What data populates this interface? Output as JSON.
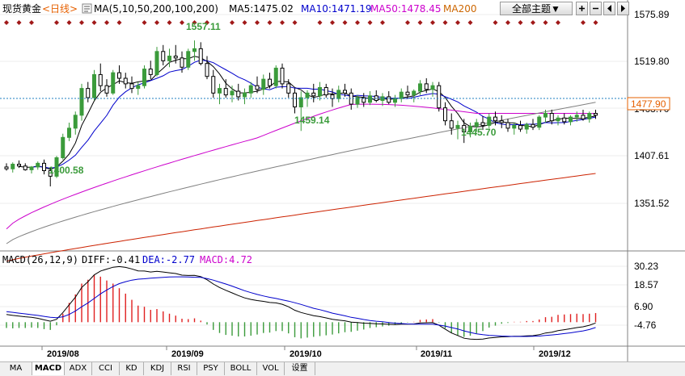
{
  "header": {
    "title": "现货黄金",
    "period": "<日线>",
    "ma_label": "MA(5,10,50,200,100,200)",
    "ma5": "MA5:1475.02",
    "ma10": "MA10:1471.19",
    "ma50": "MA50:1478.45",
    "ma200": "MA200",
    "theme_button": "全部主题▼",
    "colors": {
      "title": "#000000",
      "period": "#e66000",
      "ma5": "#000000",
      "ma10": "#0000cc",
      "ma50": "#cc00cc",
      "ma200": "#cc6600"
    }
  },
  "price_axis": {
    "ticks": [
      "1575.89",
      "1519.80",
      "1463.70",
      "1407.61",
      "1351.52"
    ],
    "current_price": "1477.90",
    "current_price_color": "#e66000"
  },
  "annotations": {
    "high": "1557.11",
    "low1": "1400.58",
    "low2": "1459.14",
    "low3": "1445.70"
  },
  "macd": {
    "label": "MACD(26,12,9)",
    "diff": "DIFF:-0.41",
    "dea": "DEA:-2.77",
    "macd_value": "MACD:4.72",
    "ticks": [
      "30.23",
      "18.57",
      "6.90",
      "-4.76"
    ]
  },
  "dates": [
    "2019/08",
    "2019/09",
    "2019/10",
    "2019/11",
    "2019/12"
  ],
  "tabs": [
    "MA",
    "MACD",
    "ADX",
    "CCI",
    "KD",
    "KDJ",
    "RSI",
    "PSY",
    "BOLL",
    "VOL",
    "设置"
  ],
  "icons": [
    "zoom-in-icon",
    "zoom-out-icon",
    "scroll-left-icon",
    "scroll-right-icon"
  ],
  "chart_data": {
    "type": "candlestick",
    "price_range": [
      1330,
      1585
    ],
    "macd_range": [
      -12,
      34
    ],
    "candles": [
      [
        1420,
        1424,
        1416,
        1418
      ],
      [
        1418,
        1425,
        1414,
        1423
      ],
      [
        1423,
        1427,
        1419,
        1421
      ],
      [
        1421,
        1424,
        1416,
        1417
      ],
      [
        1417,
        1421,
        1413,
        1420
      ],
      [
        1420,
        1426,
        1417,
        1424
      ],
      [
        1424,
        1428,
        1412,
        1416
      ],
      [
        1416,
        1420,
        1399,
        1410
      ],
      [
        1410,
        1432,
        1408,
        1430
      ],
      [
        1430,
        1456,
        1428,
        1452
      ],
      [
        1452,
        1468,
        1448,
        1462
      ],
      [
        1462,
        1480,
        1455,
        1476
      ],
      [
        1476,
        1510,
        1470,
        1505
      ],
      [
        1505,
        1512,
        1490,
        1495
      ],
      [
        1495,
        1525,
        1492,
        1520
      ],
      [
        1520,
        1532,
        1502,
        1508
      ],
      [
        1508,
        1515,
        1496,
        1500
      ],
      [
        1500,
        1525,
        1498,
        1522
      ],
      [
        1522,
        1530,
        1510,
        1516
      ],
      [
        1516,
        1522,
        1505,
        1510
      ],
      [
        1510,
        1518,
        1500,
        1505
      ],
      [
        1505,
        1512,
        1498,
        1508
      ],
      [
        1508,
        1530,
        1505,
        1526
      ],
      [
        1526,
        1535,
        1515,
        1520
      ],
      [
        1520,
        1550,
        1518,
        1545
      ],
      [
        1545,
        1552,
        1530,
        1535
      ],
      [
        1535,
        1548,
        1528,
        1540
      ],
      [
        1540,
        1552,
        1532,
        1538
      ],
      [
        1538,
        1545,
        1522,
        1528
      ],
      [
        1528,
        1548,
        1525,
        1545
      ],
      [
        1545,
        1557,
        1535,
        1548
      ],
      [
        1548,
        1555,
        1530,
        1532
      ],
      [
        1532,
        1540,
        1515,
        1518
      ],
      [
        1518,
        1525,
        1495,
        1500
      ],
      [
        1500,
        1510,
        1488,
        1505
      ],
      [
        1505,
        1515,
        1495,
        1498
      ],
      [
        1498,
        1508,
        1490,
        1502
      ],
      [
        1502,
        1510,
        1492,
        1496
      ],
      [
        1496,
        1505,
        1488,
        1500
      ],
      [
        1500,
        1512,
        1495,
        1508
      ],
      [
        1508,
        1518,
        1500,
        1504
      ],
      [
        1504,
        1520,
        1498,
        1515
      ],
      [
        1515,
        1522,
        1505,
        1508
      ],
      [
        1508,
        1530,
        1505,
        1527
      ],
      [
        1527,
        1532,
        1505,
        1510
      ],
      [
        1510,
        1515,
        1495,
        1500
      ],
      [
        1500,
        1505,
        1478,
        1485
      ],
      [
        1485,
        1502,
        1459,
        1495
      ],
      [
        1495,
        1503,
        1485,
        1500
      ],
      [
        1500,
        1510,
        1490,
        1497
      ],
      [
        1497,
        1512,
        1492,
        1506
      ],
      [
        1506,
        1510,
        1495,
        1498
      ],
      [
        1498,
        1505,
        1485,
        1494
      ],
      [
        1494,
        1508,
        1490,
        1503
      ],
      [
        1503,
        1510,
        1496,
        1500
      ],
      [
        1500,
        1505,
        1482,
        1488
      ],
      [
        1488,
        1498,
        1484,
        1495
      ],
      [
        1495,
        1500,
        1485,
        1490
      ],
      [
        1490,
        1502,
        1487,
        1497
      ],
      [
        1497,
        1503,
        1490,
        1492
      ],
      [
        1492,
        1500,
        1486,
        1496
      ],
      [
        1496,
        1502,
        1488,
        1490
      ],
      [
        1490,
        1498,
        1485,
        1494
      ],
      [
        1494,
        1505,
        1490,
        1501
      ],
      [
        1501,
        1508,
        1494,
        1498
      ],
      [
        1498,
        1504,
        1490,
        1502
      ],
      [
        1502,
        1514,
        1498,
        1510
      ],
      [
        1510,
        1516,
        1500,
        1504
      ],
      [
        1504,
        1512,
        1496,
        1508
      ],
      [
        1508,
        1512,
        1480,
        1484
      ],
      [
        1484,
        1490,
        1465,
        1470
      ],
      [
        1470,
        1478,
        1455,
        1462
      ],
      [
        1462,
        1470,
        1450,
        1465
      ],
      [
        1465,
        1472,
        1446,
        1458
      ],
      [
        1458,
        1468,
        1452,
        1464
      ],
      [
        1464,
        1472,
        1458,
        1468
      ],
      [
        1468,
        1475,
        1460,
        1465
      ],
      [
        1465,
        1478,
        1462,
        1474
      ],
      [
        1474,
        1480,
        1465,
        1470
      ],
      [
        1470,
        1476,
        1462,
        1468
      ],
      [
        1468,
        1472,
        1458,
        1462
      ],
      [
        1462,
        1468,
        1455,
        1465
      ],
      [
        1465,
        1470,
        1458,
        1461
      ],
      [
        1461,
        1468,
        1456,
        1466
      ],
      [
        1466,
        1472,
        1460,
        1463
      ],
      [
        1463,
        1476,
        1460,
        1474
      ],
      [
        1474,
        1482,
        1468,
        1478
      ],
      [
        1478,
        1482,
        1466,
        1470
      ],
      [
        1470,
        1476,
        1465,
        1473
      ],
      [
        1473,
        1478,
        1466,
        1469
      ],
      [
        1469,
        1476,
        1465,
        1474
      ],
      [
        1474,
        1480,
        1469,
        1476
      ],
      [
        1476,
        1482,
        1470,
        1472
      ],
      [
        1472,
        1480,
        1468,
        1478
      ],
      [
        1478,
        1482,
        1472,
        1476
      ]
    ],
    "macd_diff": [
      4.0,
      3.5,
      3.2,
      2.8,
      2.5,
      2.0,
      1.2,
      0.5,
      1.5,
      5.0,
      9.0,
      13.0,
      18.0,
      21.0,
      24.5,
      26.5,
      27.5,
      28.5,
      28.8,
      28.4,
      27.6,
      26.6,
      26.5,
      26.0,
      26.4,
      26.0,
      25.6,
      25.2,
      24.4,
      24.2,
      24.3,
      23.6,
      22.0,
      19.8,
      18.0,
      16.5,
      15.2,
      13.8,
      12.6,
      11.8,
      11.2,
      10.8,
      10.2,
      10.0,
      9.3,
      8.0,
      6.2,
      5.0,
      4.2,
      3.4,
      2.9,
      2.2,
      1.5,
      1.1,
      0.7,
      0.0,
      -0.2,
      -0.5,
      -0.6,
      -0.8,
      -0.9,
      -1.1,
      -1.2,
      -1.0,
      -1.0,
      -0.9,
      -0.4,
      -0.3,
      -0.2,
      -1.6,
      -3.6,
      -5.6,
      -6.9,
      -8.3,
      -8.8,
      -8.9,
      -8.8,
      -8.2,
      -7.9,
      -7.6,
      -7.5,
      -7.3,
      -7.3,
      -7.1,
      -7.0,
      -6.5,
      -5.6,
      -5.2,
      -4.4,
      -3.9,
      -3.4,
      -2.8,
      -2.4,
      -1.6,
      -0.4
    ],
    "macd_dea": [
      5.5,
      5.1,
      4.7,
      4.3,
      3.9,
      3.5,
      3.0,
      2.5,
      2.3,
      2.8,
      4.0,
      5.8,
      8.0,
      10.0,
      12.3,
      14.7,
      16.7,
      18.5,
      20.0,
      21.0,
      21.8,
      22.3,
      22.5,
      22.8,
      23.0,
      23.2,
      23.4,
      23.5,
      23.5,
      23.4,
      23.3,
      23.2,
      22.6,
      21.8,
      20.8,
      19.8,
      18.7,
      17.5,
      16.3,
      15.3,
      14.4,
      13.6,
      12.9,
      12.3,
      11.6,
      10.9,
      10.1,
      9.2,
      8.2,
      7.2,
      6.5,
      5.6,
      4.7,
      4.0,
      3.3,
      2.5,
      2.0,
      1.4,
      0.9,
      0.5,
      0.2,
      -0.2,
      -0.5,
      -0.7,
      -0.9,
      -1.0,
      -1.0,
      -1.0,
      -1.0,
      -1.5,
      -2.0,
      -2.8,
      -3.5,
      -4.5,
      -5.3,
      -6.0,
      -6.5,
      -6.8,
      -7.0,
      -7.2,
      -7.3,
      -7.4,
      -7.4,
      -7.4,
      -7.3,
      -7.2,
      -6.9,
      -6.6,
      -6.3,
      -5.9,
      -5.5,
      -5.0,
      -4.5,
      -3.8,
      -2.77
    ]
  }
}
